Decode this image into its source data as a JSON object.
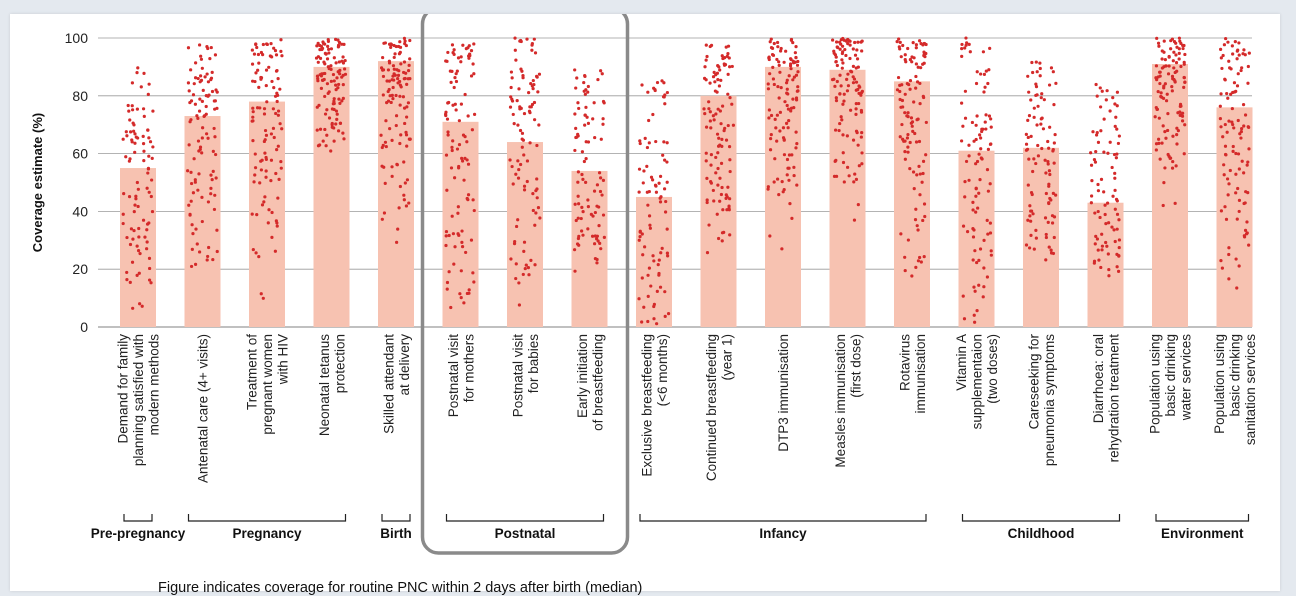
{
  "caption": "Figure indicates coverage for routine PNC within 2 days after birth (median)",
  "chart_data": {
    "type": "bar",
    "ylabel": "Coverage estimate (%)",
    "ylim": [
      0,
      100
    ],
    "yticks": [
      0,
      20,
      40,
      60,
      80,
      100
    ],
    "grid": true,
    "bar_color": "#f7c2b1",
    "dot_color": "#d42a2a",
    "highlight_color": "#8a8a8a",
    "categories": [
      {
        "lines": [
          "Demand for family",
          "planning satisfied with",
          "modern methods"
        ],
        "median": 55,
        "range": [
          5,
          90
        ]
      },
      {
        "lines": [
          "Antenatal care (4+ visits)"
        ],
        "median": 73,
        "range": [
          17,
          98
        ]
      },
      {
        "lines": [
          "Treatment of",
          "pregnant women",
          "with HIV"
        ],
        "median": 78,
        "range": [
          5,
          100
        ]
      },
      {
        "lines": [
          "Neonatal tetanus",
          "protection"
        ],
        "median": 90,
        "range": [
          60,
          100
        ]
      },
      {
        "lines": [
          "Skilled attendant",
          "at delivery"
        ],
        "median": 92,
        "range": [
          20,
          100
        ]
      },
      {
        "lines": [
          "Postnatal visit",
          "for mothers"
        ],
        "median": 71,
        "range": [
          1,
          100
        ]
      },
      {
        "lines": [
          "Postnatal visit",
          "for babies"
        ],
        "median": 64,
        "range": [
          4,
          100
        ]
      },
      {
        "lines": [
          "Early initiation",
          "of breastfeeding"
        ],
        "median": 54,
        "range": [
          19,
          90
        ]
      },
      {
        "lines": [
          "Exclusive breastfeeding",
          "(<6 months)"
        ],
        "median": 45,
        "range": [
          0,
          87
        ]
      },
      {
        "lines": [
          "Continued breastfeeding",
          "(year 1)"
        ],
        "median": 80,
        "range": [
          24,
          98
        ]
      },
      {
        "lines": [
          "DTP3 immunisation"
        ],
        "median": 90,
        "range": [
          25,
          100
        ]
      },
      {
        "lines": [
          "Measles immunisation",
          "(first dose)"
        ],
        "median": 89,
        "range": [
          29,
          100
        ]
      },
      {
        "lines": [
          "Rotavirus",
          "immunisation"
        ],
        "median": 85,
        "range": [
          2,
          100
        ]
      },
      {
        "lines": [
          "Vitamin A",
          "supplementaion",
          "(two doses)"
        ],
        "median": 61,
        "range": [
          0,
          100
        ]
      },
      {
        "lines": [
          "Careseeking for",
          "pneumonia symptoms"
        ],
        "median": 62,
        "range": [
          23,
          93
        ]
      },
      {
        "lines": [
          "Diarrhoea: oral",
          "rehydration treatment"
        ],
        "median": 43,
        "range": [
          15,
          84
        ]
      },
      {
        "lines": [
          "Population using",
          "basic drinking",
          "water services"
        ],
        "median": 91,
        "range": [
          38,
          100
        ]
      },
      {
        "lines": [
          "Population using",
          "basic drinking",
          "sanitation services"
        ],
        "median": 76,
        "range": [
          7,
          100
        ]
      }
    ],
    "groups": [
      {
        "label": "Pre-pregnancy",
        "from": 0,
        "to": 0
      },
      {
        "label": "Pregnancy",
        "from": 1,
        "to": 3
      },
      {
        "label": "Birth",
        "from": 4,
        "to": 4
      },
      {
        "label": "Postnatal",
        "from": 5,
        "to": 7,
        "highlighted": true
      },
      {
        "label": "Infancy",
        "from": 8,
        "to": 12
      },
      {
        "label": "Childhood",
        "from": 13,
        "to": 15
      },
      {
        "label": "Environment",
        "from": 16,
        "to": 17
      }
    ]
  }
}
